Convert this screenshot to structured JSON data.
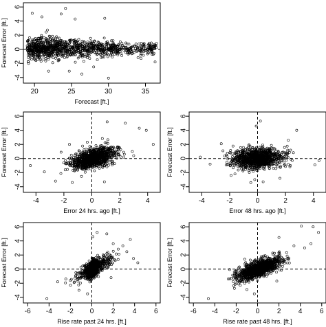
{
  "chart_data": [
    {
      "type": "scatter",
      "panel": "forecast",
      "xlabel": "Forecast [ft.]",
      "ylabel": "Forecast Error [ft.]",
      "xlim": [
        18.5,
        37
      ],
      "ylim": [
        -4.8,
        6.6
      ],
      "xticks": [
        20,
        25,
        30,
        35
      ],
      "yticks": [
        -4,
        -2,
        0,
        2,
        4,
        6
      ],
      "hline": 0,
      "vline": null,
      "points": {
        "n": 1100,
        "distribution": "forecast values dense 19-31 ft, sparse to 36.5; error centered near 0, spread about ±1 ft decreasing with forecast level",
        "notable": [
          [
            19.7,
            5.1
          ],
          [
            24.2,
            5.8
          ],
          [
            23.6,
            5.0
          ],
          [
            21.0,
            4.6
          ],
          [
            29.5,
            4.4
          ],
          [
            25.5,
            4.3
          ],
          [
            24.7,
            -3.1
          ],
          [
            26.4,
            -3.5
          ],
          [
            28.0,
            -2.5
          ],
          [
            30.0,
            -4.1
          ],
          [
            34.4,
            -1.3
          ],
          [
            36.3,
            -1.8
          ],
          [
            35.8,
            0.9
          ],
          [
            21.9,
            -3.1
          ],
          [
            19.2,
            -2.0
          ]
        ]
      }
    },
    {
      "type": "scatter",
      "panel": "error24",
      "xlabel": "Error 24 hrs. ago [ft.]",
      "ylabel": "Forecast Error [ft.]",
      "xlim": [
        -4.9,
        4.9
      ],
      "ylim": [
        -4.8,
        6.6
      ],
      "xticks": [
        -4,
        -2,
        0,
        2,
        4
      ],
      "yticks": [
        -4,
        -2,
        0,
        2,
        4,
        6
      ],
      "hline": 0,
      "vline": 0,
      "points": {
        "n": 1100,
        "distribution": "positively correlated cloud centered at origin, most points within x -1.5 to 2 and y -1.5 to 1.5",
        "notable": [
          [
            3.4,
            4.3
          ],
          [
            3.9,
            4.0
          ],
          [
            2.4,
            5.0
          ],
          [
            1.1,
            5.2
          ],
          [
            4.4,
            2.0
          ],
          [
            2.9,
            1.0
          ],
          [
            -2.6,
            -3.2
          ],
          [
            -1.4,
            -3.4
          ],
          [
            -3.4,
            -1.9
          ],
          [
            -4.4,
            -1.0
          ],
          [
            -1.6,
            2.0
          ],
          [
            0.9,
            -3.3
          ],
          [
            3.0,
            0.4
          ],
          [
            -2.2,
            0.9
          ]
        ]
      }
    },
    {
      "type": "scatter",
      "panel": "error48",
      "xlabel": "Error 48 hrs. ago [ft.]",
      "ylabel": "Forecast Error [ft.]",
      "xlim": [
        -4.9,
        4.9
      ],
      "ylim": [
        -4.8,
        6.6
      ],
      "xticks": [
        -4,
        -2,
        0,
        2,
        4
      ],
      "yticks": [
        -4,
        -2,
        0,
        2,
        4,
        6
      ],
      "hline": 0,
      "vline": 0,
      "points": {
        "n": 1100,
        "distribution": "roughly circular cloud centered at origin, weak correlation, spread about ±1.5 in both directions",
        "notable": [
          [
            0.2,
            5.3
          ],
          [
            -0.1,
            4.6
          ],
          [
            2.8,
            4.0
          ],
          [
            2.2,
            2.6
          ],
          [
            -2.6,
            2.1
          ],
          [
            4.1,
            -0.9
          ],
          [
            4.4,
            -0.3
          ],
          [
            -3.4,
            -0.8
          ],
          [
            -4.1,
            0.2
          ],
          [
            0.4,
            -3.3
          ],
          [
            -0.2,
            -3.0
          ],
          [
            1.6,
            -2.8
          ],
          [
            -1.9,
            -2.4
          ]
        ]
      }
    },
    {
      "type": "scatter",
      "panel": "rise24",
      "xlabel": "Rise rate past 24 hrs. [ft.]",
      "ylabel": "Forecast Error [ft.]",
      "xlim": [
        -6.4,
        6.4
      ],
      "ylim": [
        -4.8,
        6.6
      ],
      "xticks": [
        -6,
        -4,
        -2,
        0,
        2,
        4,
        6
      ],
      "yticks": [
        -4,
        -2,
        0,
        2,
        4,
        6
      ],
      "hline": 0,
      "vline": 0,
      "points": {
        "n": 1100,
        "distribution": "strong positive correlation, very dense vertical band at x -0.5 to 0.8, tail extending up-right to x about 4",
        "notable": [
          [
            3.6,
            4.2
          ],
          [
            2.9,
            3.3
          ],
          [
            2.0,
            3.6
          ],
          [
            1.4,
            5.0
          ],
          [
            0.5,
            5.2
          ],
          [
            0.1,
            4.6
          ],
          [
            3.9,
            1.5
          ],
          [
            4.3,
            0.9
          ],
          [
            -4.2,
            -4.2
          ],
          [
            -1.2,
            -3.0
          ],
          [
            -0.4,
            -3.5
          ],
          [
            -2.0,
            -1.6
          ],
          [
            -3.2,
            -1.8
          ],
          [
            1.8,
            -1.2
          ]
        ]
      }
    },
    {
      "type": "scatter",
      "panel": "rise48",
      "xlabel": "Rise rate past 48 hrs. [ft.]",
      "ylabel": "Forecast Error [ft.]",
      "xlim": [
        -6.4,
        6.4
      ],
      "ylim": [
        -4.8,
        6.6
      ],
      "xticks": [
        -6,
        -4,
        -2,
        0,
        2,
        4,
        6
      ],
      "yticks": [
        -4,
        -2,
        0,
        2,
        4,
        6
      ],
      "hline": 0,
      "vline": 0,
      "points": {
        "n": 1100,
        "distribution": "positive correlation, elongated cloud from lower-left to upper-right, centered at origin",
        "notable": [
          [
            5.2,
            6.0
          ],
          [
            4.1,
            6.1
          ],
          [
            5.7,
            5.2
          ],
          [
            5.0,
            3.6
          ],
          [
            3.4,
            3.3
          ],
          [
            4.4,
            3.0
          ],
          [
            2.0,
            4.5
          ],
          [
            -4.6,
            -4.2
          ],
          [
            -1.8,
            -2.1
          ],
          [
            -2.6,
            -1.4
          ],
          [
            -1.0,
            -2.9
          ],
          [
            -0.3,
            -3.5
          ],
          [
            1.8,
            -1.7
          ],
          [
            -1.2,
            1.4
          ]
        ]
      }
    }
  ]
}
